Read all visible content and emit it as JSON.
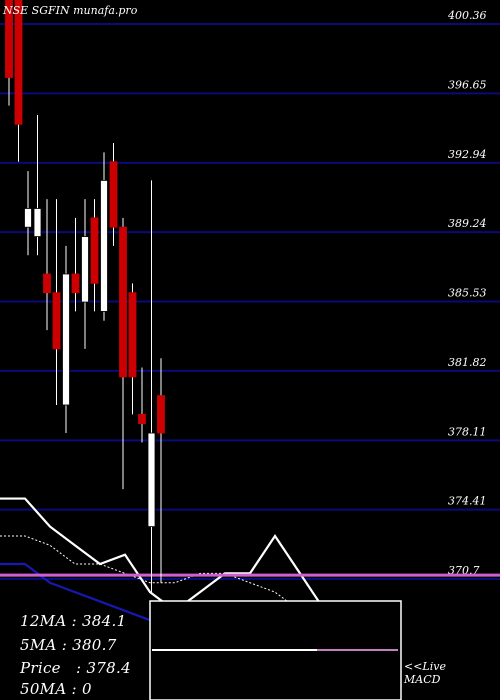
{
  "header": {
    "title": "NSE SGFIN munafa.pro"
  },
  "legend": {
    "ma12": "12MA : 384.1",
    "ma5": "5MA : 380.7",
    "price": "Price   : 378.4",
    "ma50": "50MA : 0"
  },
  "macd_panel": {
    "live": "<<Live",
    "macd": "MACD"
  },
  "colors": {
    "background": "#000000",
    "gridline": "#0a0a7a",
    "bull": "#ffffff",
    "bear": "#cc0000",
    "ma_white": "#ffffff",
    "ma_blue": "#1818b0",
    "price_level": "#d060d0",
    "macd_signal": "#c080c0"
  },
  "chart_data": {
    "type": "candlestick",
    "title": "NSE SGFIN munafa.pro",
    "ylim": [
      367.5,
      403.5
    ],
    "y_ticks": [
      "400.36",
      "396.65",
      "392.94",
      "389.24",
      "385.53",
      "381.82",
      "378.11",
      "374.41",
      "370.7"
    ],
    "y_tick_values": [
      400.36,
      396.65,
      392.94,
      389.24,
      385.53,
      381.82,
      378.11,
      374.41,
      370.7
    ],
    "current_price_level": 370.8,
    "candles": [
      {
        "o": 403.0,
        "h": 403.5,
        "l": 396.0,
        "c": 397.5,
        "dir": "bear"
      },
      {
        "o": 403.0,
        "h": 403.5,
        "l": 393.0,
        "c": 395.0,
        "dir": "bear"
      },
      {
        "o": 389.5,
        "h": 392.5,
        "l": 388.0,
        "c": 390.5,
        "dir": "bull"
      },
      {
        "o": 389.0,
        "h": 395.5,
        "l": 388.0,
        "c": 390.5,
        "dir": "bull"
      },
      {
        "o": 386.0,
        "h": 391.0,
        "l": 384.0,
        "c": 387.0,
        "dir": "bear"
      },
      {
        "o": 386.0,
        "h": 391.0,
        "l": 380.0,
        "c": 383.0,
        "dir": "bear"
      },
      {
        "o": 387.0,
        "h": 388.5,
        "l": 378.5,
        "c": 380.0,
        "dir": "bull"
      },
      {
        "o": 387.0,
        "h": 390.0,
        "l": 385.0,
        "c": 386.0,
        "dir": "bear"
      },
      {
        "o": 389.0,
        "h": 391.0,
        "l": 383.0,
        "c": 385.5,
        "dir": "bull"
      },
      {
        "o": 390.0,
        "h": 391.0,
        "l": 385.0,
        "c": 386.5,
        "dir": "bear"
      },
      {
        "o": 385.0,
        "h": 393.5,
        "l": 384.5,
        "c": 392.0,
        "dir": "bull"
      },
      {
        "o": 393.0,
        "h": 394.0,
        "l": 388.5,
        "c": 389.5,
        "dir": "bear"
      },
      {
        "o": 389.5,
        "h": 390.0,
        "l": 375.5,
        "c": 381.5,
        "dir": "bear"
      },
      {
        "o": 386.0,
        "h": 386.5,
        "l": 379.5,
        "c": 381.5,
        "dir": "bear"
      },
      {
        "o": 379.5,
        "h": 382.0,
        "l": 378.0,
        "c": 379.0,
        "dir": "bear"
      },
      {
        "o": 373.5,
        "h": 392.0,
        "l": 370.0,
        "c": 378.5,
        "dir": "bull"
      },
      {
        "o": 380.5,
        "h": 382.5,
        "l": 370.5,
        "c": 378.5,
        "dir": "bear"
      }
    ],
    "ma_white": [
      375.0,
      375.0,
      373.5,
      372.5,
      371.5,
      372.0,
      370.0,
      369.0,
      370.0,
      371.0,
      371.0,
      373.0,
      371.0,
      369.0,
      369.0,
      368.8
    ],
    "ma_dotted": [
      373.0,
      373.0,
      372.5,
      371.5,
      371.5,
      371.0,
      370.5,
      370.5,
      371.0,
      371.0,
      370.5,
      370.0,
      369.0,
      369.0,
      368.5
    ],
    "ma_blue": [
      371.5,
      371.5,
      370.5,
      370.0,
      369.5,
      369.0,
      368.5,
      368.0,
      368.5,
      369.0,
      369.5
    ]
  }
}
